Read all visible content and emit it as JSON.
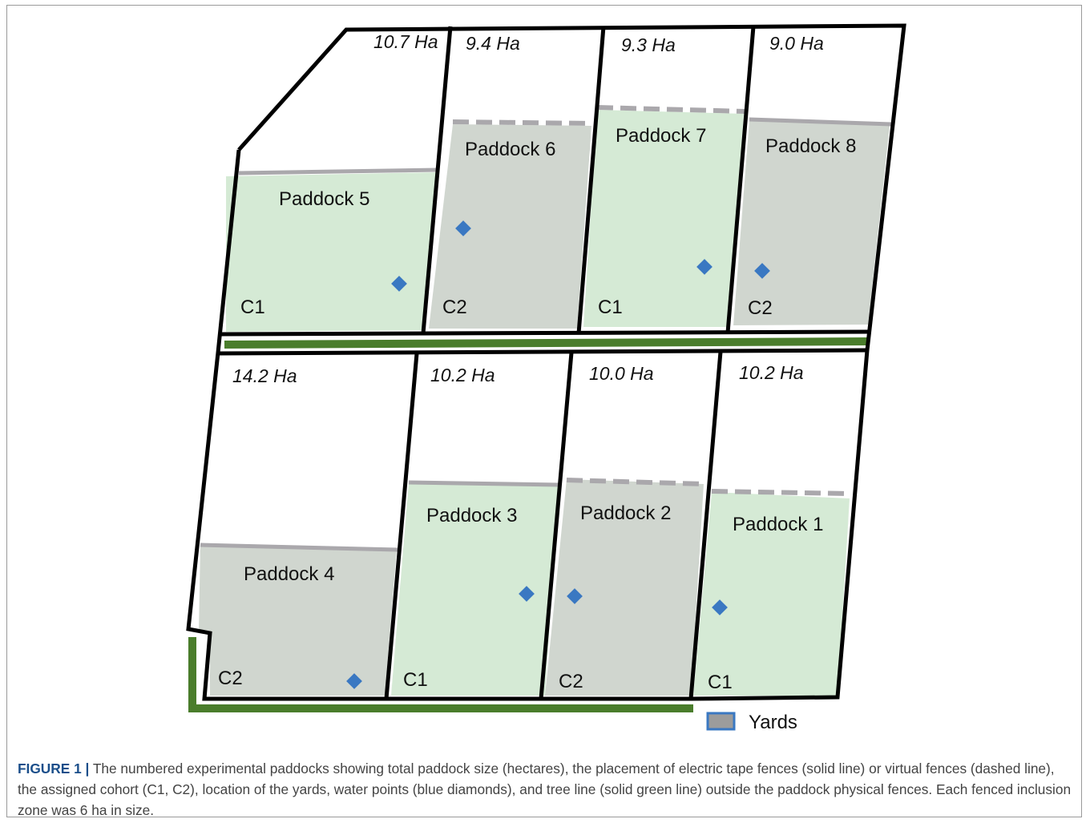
{
  "paddocks": [
    {
      "label": "Paddock 5",
      "area": "10.7 Ha",
      "cohort": "C1"
    },
    {
      "label": "Paddock 6",
      "area": "9.4 Ha",
      "cohort": "C2"
    },
    {
      "label": "Paddock 7",
      "area": "9.3 Ha",
      "cohort": "C1"
    },
    {
      "label": "Paddock 8",
      "area": "9.0 Ha",
      "cohort": "C2"
    },
    {
      "label": "Paddock 4",
      "area": "14.2 Ha",
      "cohort": "C2"
    },
    {
      "label": "Paddock 3",
      "area": "10.2 Ha",
      "cohort": "C1"
    },
    {
      "label": "Paddock 2",
      "area": "10.0 Ha",
      "cohort": "C2"
    },
    {
      "label": "Paddock 1",
      "area": "10.2 Ha",
      "cohort": "C1"
    }
  ],
  "legend": {
    "yards": "Yards"
  },
  "caption": {
    "label": "FIGURE 1 |",
    "text": "The numbered experimental paddocks showing total paddock size (hectares), the placement of electric tape fences (solid line) or virtual fences (dashed line), the assigned cohort (C1, C2), location of the yards, water points (blue diamonds), and tree line (solid green line) outside the paddock physical fences. Each fenced inclusion zone was 6 ha in size."
  }
}
